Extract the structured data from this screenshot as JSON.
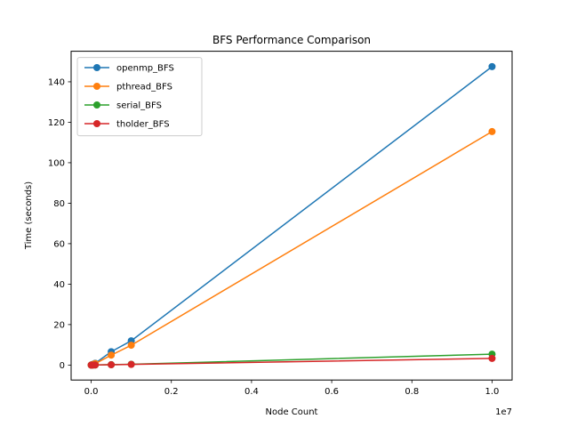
{
  "chart_data": {
    "type": "line",
    "title": "BFS Performance Comparison",
    "xlabel": "Node Count",
    "ylabel": "Time (seconds)",
    "x_offset_text": "1e7",
    "x_scale": 10000000,
    "xlim": [
      -500000,
      10500000
    ],
    "ylim": [
      -7.4,
      155.1
    ],
    "x_ticks": [
      0,
      2000000,
      4000000,
      6000000,
      8000000,
      10000000
    ],
    "x_tick_labels": [
      "0.0",
      "0.2",
      "0.4",
      "0.6",
      "0.8",
      "1.0"
    ],
    "y_ticks": [
      0,
      20,
      40,
      60,
      80,
      100,
      120,
      140
    ],
    "y_tick_labels": [
      "0",
      "20",
      "40",
      "60",
      "80",
      "100",
      "120",
      "140"
    ],
    "grid": false,
    "legend_position": "top-left",
    "x": [
      1000,
      10000,
      50000,
      100000,
      500000,
      1000000,
      10000000
    ],
    "series": [
      {
        "name": "openmp_BFS",
        "color": "#1f77b4",
        "values": [
          0.01,
          0.08,
          0.4,
          0.9,
          6.6,
          12.0,
          147.5
        ]
      },
      {
        "name": "pthread_BFS",
        "color": "#ff7f0e",
        "values": [
          0.01,
          0.06,
          0.3,
          0.7,
          4.9,
          9.8,
          115.4
        ]
      },
      {
        "name": "serial_BFS",
        "color": "#2ca02c",
        "values": [
          0.0,
          0.0,
          0.02,
          0.04,
          0.2,
          0.4,
          5.4
        ]
      },
      {
        "name": "tholder_BFS",
        "color": "#d62728",
        "values": [
          0.0,
          0.0,
          0.02,
          0.03,
          0.15,
          0.3,
          3.3
        ]
      }
    ]
  }
}
